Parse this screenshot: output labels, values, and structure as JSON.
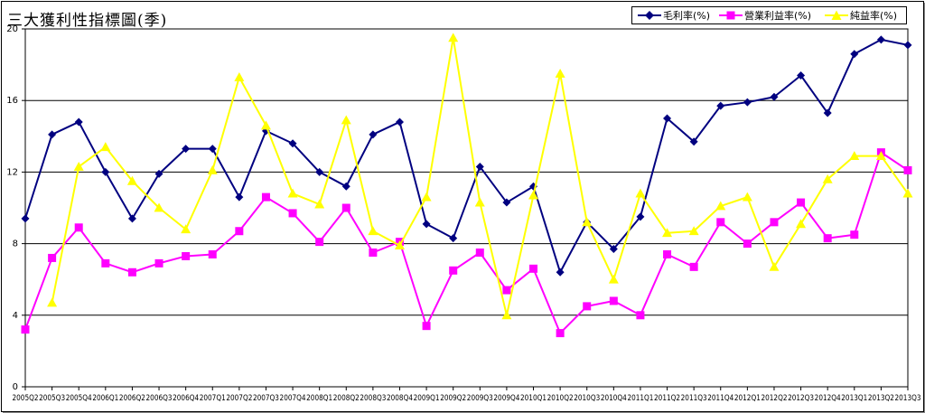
{
  "chart_data": {
    "type": "line",
    "title": "三大獲利性指標圖(季)",
    "xlabel": "",
    "ylabel": "",
    "ylim": [
      0,
      20
    ],
    "yticks": [
      0,
      4,
      8,
      12,
      16,
      20
    ],
    "grid": true,
    "legend_position": "top-right",
    "categories": [
      "2005Q2",
      "2005Q3",
      "2005Q4",
      "2006Q1",
      "2006Q2",
      "2006Q3",
      "2006Q4",
      "2007Q1",
      "2007Q2",
      "2007Q3",
      "2007Q4",
      "2008Q1",
      "2008Q2",
      "2008Q3",
      "2008Q4",
      "2009Q1",
      "2009Q2",
      "2009Q3",
      "2009Q4",
      "2010Q1",
      "2010Q2",
      "2010Q3",
      "2010Q4",
      "2011Q1",
      "2011Q2",
      "2011Q3",
      "2011Q4",
      "2012Q1",
      "2012Q2",
      "2012Q3",
      "2012Q4",
      "2013Q1",
      "2013Q2",
      "2013Q3"
    ],
    "series": [
      {
        "name": "毛利率(%)",
        "color": "#000080",
        "marker": "diamond",
        "values": [
          9.4,
          14.1,
          14.8,
          12.0,
          9.4,
          11.9,
          13.3,
          13.3,
          10.6,
          14.3,
          13.6,
          12.0,
          11.2,
          14.1,
          14.8,
          9.1,
          8.3,
          12.3,
          10.3,
          11.2,
          6.4,
          9.2,
          7.7,
          9.5,
          15.0,
          13.7,
          15.7,
          15.9,
          16.2,
          17.4,
          15.3,
          18.6,
          19.4,
          19.1
        ]
      },
      {
        "name": "營業利益率(%)",
        "color": "#ff00ff",
        "marker": "square",
        "values": [
          3.2,
          7.2,
          8.9,
          6.9,
          6.4,
          6.9,
          7.3,
          7.4,
          8.7,
          10.6,
          9.7,
          8.1,
          10.0,
          7.5,
          8.1,
          3.4,
          6.5,
          7.5,
          5.4,
          6.6,
          3.0,
          4.5,
          4.8,
          4.0,
          7.4,
          6.7,
          9.2,
          8.0,
          9.2,
          10.3,
          8.3,
          8.5,
          13.1,
          12.1
        ]
      },
      {
        "name": "純益率(%)",
        "color": "#ffff00",
        "marker": "triangle",
        "values": [
          null,
          4.7,
          12.3,
          13.4,
          11.5,
          10.0,
          8.8,
          12.1,
          17.3,
          14.6,
          10.8,
          10.2,
          14.9,
          8.7,
          7.9,
          10.6,
          19.5,
          10.3,
          4.0,
          10.7,
          17.5,
          9.2,
          6.0,
          10.8,
          8.6,
          8.7,
          10.1,
          10.6,
          6.7,
          9.1,
          11.6,
          12.9,
          12.9,
          10.8
        ]
      }
    ]
  }
}
